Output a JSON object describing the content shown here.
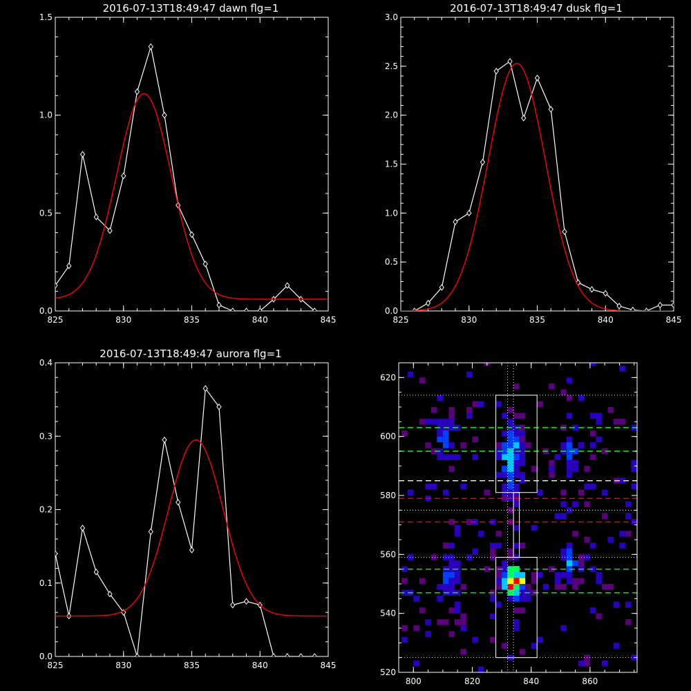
{
  "chart_data": [
    {
      "type": "line",
      "title": "2016-07-13T18:49:47 dawn flg=1",
      "xlim": [
        825,
        845
      ],
      "ylim": [
        0,
        1.5
      ],
      "xticks": [
        "825",
        "830",
        "835",
        "840",
        "845"
      ],
      "yticks": [
        "0.0",
        "0.5",
        "1.0",
        "1.5"
      ],
      "series": [
        {
          "color": "#ffffff",
          "marker": "diamond",
          "x": [
            825,
            826,
            827,
            828,
            829,
            830,
            831,
            832,
            833,
            834,
            835,
            836,
            837,
            838,
            839,
            840,
            841,
            842,
            843,
            844
          ],
          "y": [
            0.13,
            0.23,
            0.8,
            0.48,
            0.41,
            0.69,
            1.12,
            1.35,
            1.0,
            0.54,
            0.39,
            0.24,
            0.03,
            0,
            0,
            0,
            0.06,
            0.13,
            0.06,
            0
          ]
        },
        {
          "color": "#ff0000",
          "fit": "gaussian",
          "amplitude": 1.05,
          "center": 831.5,
          "sigma": 2.0,
          "offset": 0.06
        }
      ]
    },
    {
      "type": "line",
      "title": "2016-07-13T18:49:47 dusk flg=1",
      "xlim": [
        825,
        845
      ],
      "ylim": [
        0,
        3.0
      ],
      "xticks": [
        "825",
        "830",
        "835",
        "840",
        "845"
      ],
      "yticks": [
        "0.0",
        "0.5",
        "1.0",
        "1.5",
        "2.0",
        "2.5",
        "3.0"
      ],
      "series": [
        {
          "color": "#ffffff",
          "marker": "diamond",
          "x": [
            826,
            827,
            828,
            829,
            830,
            831,
            832,
            833,
            834,
            835,
            836,
            837,
            838,
            839,
            840,
            841,
            842,
            843,
            844,
            845
          ],
          "y": [
            0,
            0.08,
            0.24,
            0.91,
            1.0,
            1.52,
            2.45,
            2.55,
            1.97,
            2.38,
            2.06,
            0.81,
            0.29,
            0.22,
            0.18,
            0.05,
            0.01,
            0,
            0.06,
            0.06
          ]
        },
        {
          "color": "#ff0000",
          "fit": "gaussian",
          "amplitude": 2.53,
          "center": 833.5,
          "sigma": 2.1,
          "offset": 0.0
        }
      ]
    },
    {
      "type": "line",
      "title": "2016-07-13T18:49:47 aurora flg=1",
      "xlim": [
        825,
        845
      ],
      "ylim": [
        0,
        0.4
      ],
      "xticks": [
        "825",
        "830",
        "835",
        "840",
        "845"
      ],
      "yticks": [
        "0.0",
        "0.1",
        "0.2",
        "0.3",
        "0.4"
      ],
      "series": [
        {
          "color": "#ffffff",
          "marker": "diamond",
          "x": [
            825,
            826,
            827,
            828,
            829,
            830,
            831,
            832,
            833,
            834,
            835,
            836,
            837,
            838,
            839,
            840,
            841,
            842,
            843,
            844
          ],
          "y": [
            0.14,
            0.055,
            0.175,
            0.115,
            0.085,
            0.06,
            0.0,
            0.17,
            0.295,
            0.21,
            0.145,
            0.365,
            0.34,
            0.07,
            0.075,
            0.07,
            0,
            0,
            0,
            0
          ]
        },
        {
          "color": "#ff0000",
          "fit": "gaussian",
          "amplitude": 0.24,
          "center": 835.3,
          "sigma": 2.0,
          "offset": 0.055
        }
      ]
    },
    {
      "type": "heatmap",
      "xlim": [
        795,
        876
      ],
      "ylim": [
        520,
        625
      ],
      "xticks": [
        "800",
        "820",
        "840",
        "860"
      ],
      "yticks": [
        "520",
        "540",
        "560",
        "580",
        "600",
        "620"
      ],
      "pixel_size": 2,
      "rectangles": [
        {
          "x0": 828,
          "x1": 842,
          "y0": 581,
          "y1": 614,
          "color": "#ffffff"
        },
        {
          "x0": 828,
          "x1": 842,
          "y0": 525,
          "y1": 559,
          "color": "#ffffff"
        },
        {
          "x0": 834,
          "x1": 836,
          "y0": 559,
          "y1": 581,
          "color": "#ffffff"
        }
      ],
      "dotted_hlines": [
        614,
        525,
        575,
        559
      ],
      "dotted_vlines": [
        832,
        834
      ],
      "dashed_hlines": [
        {
          "y": 603,
          "color": "#00ff00"
        },
        {
          "y": 595,
          "color": "#00ff00"
        },
        {
          "y": 585,
          "color": "#ffffff"
        },
        {
          "y": 579,
          "color": "#ff0000"
        },
        {
          "y": 571,
          "color": "#ff0000"
        },
        {
          "y": 555,
          "color": "#00ff00"
        },
        {
          "y": 547,
          "color": "#00ff00"
        }
      ],
      "clusters": [
        {
          "x": 833,
          "y": 550,
          "sx": 2.5,
          "sy": 4,
          "peak": 1.0,
          "n": 90
        },
        {
          "x": 832,
          "y": 592,
          "sx": 2.2,
          "sy": 8,
          "peak": 0.55,
          "n": 120
        },
        {
          "x": 811,
          "y": 551,
          "sx": 2.5,
          "sy": 5,
          "peak": 0.45,
          "n": 45
        },
        {
          "x": 810,
          "y": 598,
          "sx": 3,
          "sy": 5,
          "peak": 0.35,
          "n": 30
        },
        {
          "x": 852,
          "y": 556,
          "sx": 3,
          "sy": 4,
          "peak": 0.4,
          "n": 35
        },
        {
          "x": 852,
          "y": 594,
          "sx": 3,
          "sy": 6,
          "peak": 0.3,
          "n": 30
        }
      ],
      "noise_count": 170,
      "colormap": [
        "#5a007a",
        "#2a00c0",
        "#0040ff",
        "#00c8ff",
        "#00ff60",
        "#ffff00",
        "#ff0000"
      ]
    }
  ]
}
